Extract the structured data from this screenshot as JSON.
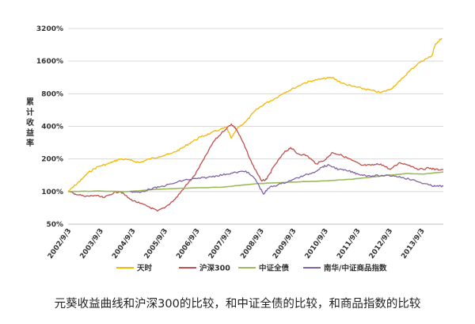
{
  "caption": "元葵收益曲线和沪深300的比较，和中证全债的比较，和商品指数的比较",
  "chart_data": {
    "type": "line",
    "ylabel": "累计收益率",
    "yscale": "log",
    "ylim": [
      50,
      3200
    ],
    "yticks": [
      "3200%",
      "1600%",
      "800%",
      "400%",
      "200%",
      "100%",
      "50%"
    ],
    "ytick_values": [
      3200,
      1600,
      800,
      400,
      200,
      100,
      50
    ],
    "xlim": [
      2002.67,
      2014.35
    ],
    "xticks": [
      "2002/9/3",
      "2003/9/3",
      "2004/9/3",
      "2005/9/3",
      "2006/9/3",
      "2007/9/3",
      "2008/9/3",
      "2009/9/3",
      "2010/9/3",
      "2011/9/3",
      "2012/9/3",
      "2013/9/3"
    ],
    "xtick_values": [
      2002.67,
      2003.67,
      2004.67,
      2005.67,
      2006.67,
      2007.67,
      2008.67,
      2009.67,
      2010.67,
      2011.67,
      2012.67,
      2013.67
    ],
    "grid": "horizontal",
    "legend_position": "bottom",
    "series": [
      {
        "name": "天时",
        "color": "#F5B800",
        "points": [
          [
            2002.67,
            100
          ],
          [
            2002.9,
            115
          ],
          [
            2003.1,
            130
          ],
          [
            2003.3,
            150
          ],
          [
            2003.6,
            170
          ],
          [
            2003.9,
            180
          ],
          [
            2004.1,
            190
          ],
          [
            2004.3,
            200
          ],
          [
            2004.6,
            195
          ],
          [
            2004.9,
            185
          ],
          [
            2005.2,
            200
          ],
          [
            2005.5,
            210
          ],
          [
            2005.9,
            225
          ],
          [
            2006.2,
            250
          ],
          [
            2006.5,
            285
          ],
          [
            2006.8,
            320
          ],
          [
            2007.1,
            345
          ],
          [
            2007.4,
            375
          ],
          [
            2007.6,
            390
          ],
          [
            2007.75,
            310
          ],
          [
            2007.95,
            390
          ],
          [
            2008.2,
            440
          ],
          [
            2008.5,
            560
          ],
          [
            2008.8,
            650
          ],
          [
            2009.1,
            720
          ],
          [
            2009.4,
            820
          ],
          [
            2009.7,
            900
          ],
          [
            2010.0,
            1000
          ],
          [
            2010.3,
            1060
          ],
          [
            2010.6,
            1100
          ],
          [
            2010.9,
            1130
          ],
          [
            2011.2,
            1000
          ],
          [
            2011.5,
            940
          ],
          [
            2011.8,
            900
          ],
          [
            2012.1,
            860
          ],
          [
            2012.4,
            820
          ],
          [
            2012.7,
            880
          ],
          [
            2013.0,
            1050
          ],
          [
            2013.3,
            1300
          ],
          [
            2013.6,
            1550
          ],
          [
            2013.85,
            1700
          ],
          [
            2014.0,
            1800
          ],
          [
            2014.1,
            2300
          ],
          [
            2014.3,
            2600
          ]
        ]
      },
      {
        "name": "沪深300",
        "color": "#C0504D",
        "points": [
          [
            2002.67,
            100
          ],
          [
            2002.9,
            95
          ],
          [
            2003.2,
            90
          ],
          [
            2003.5,
            92
          ],
          [
            2003.8,
            88
          ],
          [
            2004.1,
            98
          ],
          [
            2004.3,
            100
          ],
          [
            2004.6,
            85
          ],
          [
            2004.9,
            78
          ],
          [
            2005.2,
            72
          ],
          [
            2005.45,
            66
          ],
          [
            2005.7,
            72
          ],
          [
            2006.0,
            85
          ],
          [
            2006.3,
            110
          ],
          [
            2006.6,
            140
          ],
          [
            2006.9,
            200
          ],
          [
            2007.2,
            290
          ],
          [
            2007.5,
            360
          ],
          [
            2007.75,
            420
          ],
          [
            2007.9,
            380
          ],
          [
            2008.1,
            290
          ],
          [
            2008.4,
            180
          ],
          [
            2008.7,
            125
          ],
          [
            2008.85,
            130
          ],
          [
            2009.1,
            175
          ],
          [
            2009.4,
            230
          ],
          [
            2009.6,
            255
          ],
          [
            2009.8,
            225
          ],
          [
            2010.1,
            215
          ],
          [
            2010.4,
            180
          ],
          [
            2010.7,
            200
          ],
          [
            2010.9,
            230
          ],
          [
            2011.2,
            215
          ],
          [
            2011.5,
            195
          ],
          [
            2011.8,
            175
          ],
          [
            2012.1,
            175
          ],
          [
            2012.4,
            180
          ],
          [
            2012.7,
            160
          ],
          [
            2013.0,
            185
          ],
          [
            2013.3,
            175
          ],
          [
            2013.6,
            160
          ],
          [
            2013.9,
            165
          ],
          [
            2014.1,
            160
          ],
          [
            2014.35,
            160
          ]
        ]
      },
      {
        "name": "中证全债",
        "color": "#9BBB59",
        "points": [
          [
            2002.67,
            100
          ],
          [
            2003.5,
            101
          ],
          [
            2004.5,
            100
          ],
          [
            2005.5,
            105
          ],
          [
            2006.5,
            108
          ],
          [
            2007.5,
            110
          ],
          [
            2008.5,
            118
          ],
          [
            2009.5,
            122
          ],
          [
            2010.5,
            125
          ],
          [
            2011.5,
            130
          ],
          [
            2012.5,
            140
          ],
          [
            2013.2,
            147
          ],
          [
            2013.7,
            145
          ],
          [
            2014.35,
            152
          ]
        ]
      },
      {
        "name": "南华/中证商品指数",
        "color": "#8064A2",
        "points": [
          [
            2004.6,
            100
          ],
          [
            2004.9,
            98
          ],
          [
            2005.2,
            105
          ],
          [
            2005.5,
            110
          ],
          [
            2005.9,
            118
          ],
          [
            2006.3,
            128
          ],
          [
            2006.7,
            132
          ],
          [
            2007.0,
            135
          ],
          [
            2007.3,
            140
          ],
          [
            2007.6,
            145
          ],
          [
            2007.9,
            150
          ],
          [
            2008.2,
            155
          ],
          [
            2008.5,
            130
          ],
          [
            2008.75,
            95
          ],
          [
            2008.95,
            110
          ],
          [
            2009.3,
            118
          ],
          [
            2009.7,
            130
          ],
          [
            2010.0,
            140
          ],
          [
            2010.3,
            150
          ],
          [
            2010.6,
            170
          ],
          [
            2010.8,
            175
          ],
          [
            2011.1,
            160
          ],
          [
            2011.4,
            155
          ],
          [
            2011.7,
            145
          ],
          [
            2012.0,
            140
          ],
          [
            2012.4,
            140
          ],
          [
            2012.8,
            140
          ],
          [
            2013.1,
            135
          ],
          [
            2013.5,
            125
          ],
          [
            2013.9,
            115
          ],
          [
            2014.1,
            112
          ],
          [
            2014.35,
            112
          ]
        ]
      }
    ]
  }
}
